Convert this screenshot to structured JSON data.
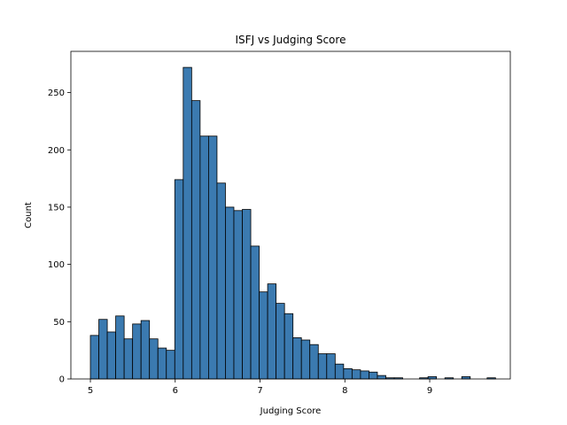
{
  "chart_data": {
    "type": "bar",
    "title": "ISFJ vs Judging Score",
    "xlabel": "Judging Score",
    "ylabel": "Count",
    "bin_start": 5.0,
    "bin_width": 0.0995,
    "xlim": [
      4.77,
      9.95
    ],
    "ylim": [
      0,
      286
    ],
    "xticks": [
      5,
      6,
      7,
      8,
      9
    ],
    "yticks": [
      0,
      50,
      100,
      150,
      200,
      250
    ],
    "bar_color": "#3b7ab0",
    "bar_edge_color": "#000000",
    "grid": false,
    "values": [
      38,
      52,
      41,
      55,
      35,
      48,
      51,
      35,
      27,
      25,
      174,
      272,
      243,
      212,
      212,
      171,
      150,
      147,
      148,
      116,
      76,
      83,
      66,
      57,
      36,
      34,
      30,
      22,
      22,
      13,
      9,
      8,
      7,
      6,
      3,
      1,
      1,
      0,
      0,
      1,
      2,
      0,
      1,
      0,
      2,
      0,
      0,
      1
    ]
  }
}
